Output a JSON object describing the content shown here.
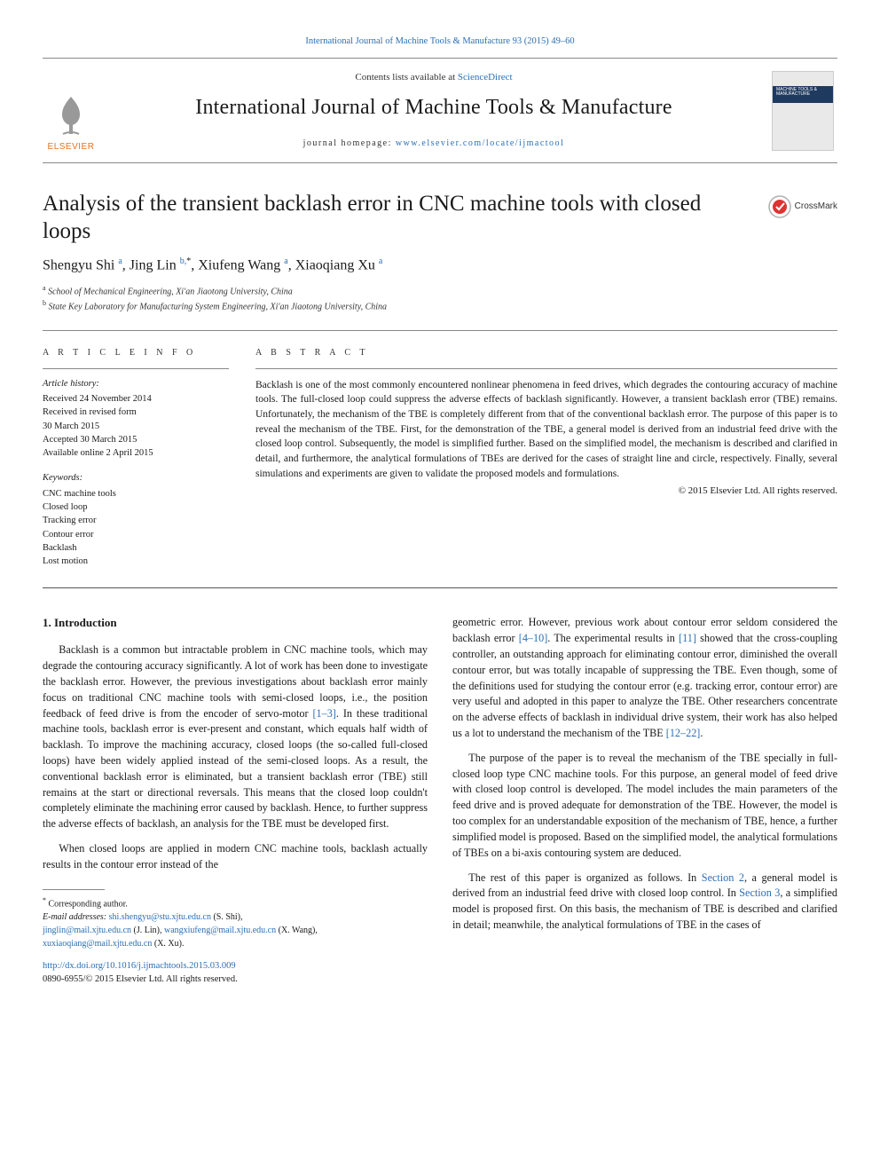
{
  "top_link": {
    "prefix": "",
    "text": "International Journal of Machine Tools & Manufacture 93 (2015) 49–60",
    "is_link": true
  },
  "header": {
    "contents_prefix": "Contents lists available at ",
    "contents_link": "ScienceDirect",
    "journal_name": "International Journal of Machine Tools & Manufacture",
    "homepage_prefix": "journal homepage: ",
    "homepage_link": "www.elsevier.com/locate/ijmactool",
    "elsevier_word": "ELSEVIER",
    "cover_title": "MACHINE TOOLS & MANUFACTURE"
  },
  "crossmark_label": "CrossMark",
  "article": {
    "title": "Analysis of the transient backlash error in CNC machine tools with closed loops",
    "authors_html": "Shengyu Shi <sup>a</sup>, Jing Lin <sup>b,</sup><sup class='ast'>*</sup>, Xiufeng Wang <sup>a</sup>, Xiaoqiang Xu <sup>a</sup>",
    "affiliations": [
      {
        "sup": "a",
        "text": "School of Mechanical Engineering, Xi'an Jiaotong University, China"
      },
      {
        "sup": "b",
        "text": "State Key Laboratory for Manufacturing System Engineering, Xi'an Jiaotong University, China"
      }
    ]
  },
  "info": {
    "heading": "A R T I C L E  I N F O",
    "history_title": "Article history:",
    "history": [
      "Received 24 November 2014",
      "Received in revised form",
      "30 March 2015",
      "Accepted 30 March 2015",
      "Available online 2 April 2015"
    ],
    "kw_title": "Keywords:",
    "keywords": [
      "CNC machine tools",
      "Closed loop",
      "Tracking error",
      "Contour error",
      "Backlash",
      "Lost motion"
    ]
  },
  "abstract": {
    "heading": "A B S T R A C T",
    "text": "Backlash is one of the most commonly encountered nonlinear phenomena in feed drives, which degrades the contouring accuracy of machine tools. The full-closed loop could suppress the adverse effects of backlash significantly. However, a transient backlash error (TBE) remains. Unfortunately, the mechanism of the TBE is completely different from that of the conventional backlash error. The purpose of this paper is to reveal the mechanism of the TBE. First, for the demonstration of the TBE, a general model is derived from an industrial feed drive with the closed loop control. Subsequently, the model is simplified further. Based on the simplified model, the mechanism is described and clarified in detail, and furthermore, the analytical formulations of TBEs are derived for the cases of straight line and circle, respectively. Finally, several simulations and experiments are given to validate the proposed models and formulations.",
    "copyright": "© 2015 Elsevier Ltd. All rights reserved."
  },
  "body": {
    "section_heading": "1.  Introduction",
    "col1": [
      "Backlash is a common but intractable problem in CNC machine tools, which may degrade the contouring accuracy significantly. A lot of work has been done to investigate the backlash error. However, the previous investigations about backlash error mainly focus on traditional CNC machine tools with semi-closed loops, i.e., the position feedback of feed drive is from the encoder of servo-motor <span class='ref'>[1–3]</span>. In these traditional machine tools, backlash error is ever-present and constant, which equals half width of backlash. To improve the machining accuracy, closed loops (the so-called full-closed loops) have been widely applied instead of the semi-closed loops. As a result, the conventional backlash error is eliminated, but a transient backlash error (TBE) still remains at the start or directional reversals. This means that the closed loop couldn't completely eliminate the machining error caused by backlash. Hence, to further suppress the adverse effects of backlash, an analysis for the TBE must be developed first.",
      "When closed loops are applied in modern CNC machine tools, backlash actually results in the contour error instead of the"
    ],
    "col2": [
      "geometric error. However, previous work about contour error seldom considered the backlash error <span class='ref'>[4–10]</span>. The experimental results in <span class='ref'>[11]</span> showed that the cross-coupling controller, an outstanding approach for eliminating contour error, diminished the overall contour error, but was totally incapable of suppressing the TBE. Even though, some of the definitions used for studying the contour error (e.g. tracking error, contour error) are very useful and adopted in this paper to analyze the TBE. Other researchers concentrate on the adverse effects of backlash in individual drive system, their work has also helped us a lot to understand the mechanism of the TBE <span class='ref'>[12–22]</span>.",
      "The purpose of the paper is to reveal the mechanism of the TBE specially in full-closed loop type CNC machine tools. For this purpose, an general model of feed drive with closed loop control is developed. The model includes the main parameters of the feed drive and is proved adequate for demonstration of the TBE. However, the model is too complex for an understandable exposition of the mechanism of TBE, hence, a further simplified model is proposed. Based on the simplified model, the analytical formulations of TBEs on a bi-axis contouring system are deduced.",
      "The rest of this paper is organized as follows. In <span class='ref'>Section 2</span>, a general model is derived from an industrial feed drive with closed loop control. In <span class='ref'>Section 3</span>, a simplified model is proposed first. On this basis, the mechanism of TBE is described and clarified in detail; meanwhile, the analytical formulations of TBE in the cases of"
    ]
  },
  "footnotes": {
    "corr": "Corresponding author.",
    "email_label": "E-mail addresses:",
    "emails": [
      {
        "addr": "shi.shengyu@stu.xjtu.edu.cn",
        "who": "(S. Shi),"
      },
      {
        "addr": "jinglin@mail.xjtu.edu.cn",
        "who": "(J. Lin),"
      },
      {
        "addr": "wangxiufeng@mail.xjtu.edu.cn",
        "who": "(X. Wang),"
      },
      {
        "addr": "xuxiaoqiang@mail.xjtu.edu.cn",
        "who": "(X. Xu)."
      }
    ],
    "doi": "http://dx.doi.org/10.1016/j.ijmachtools.2015.03.009",
    "issn": "0890-6955/© 2015 Elsevier Ltd. All rights reserved."
  },
  "colors": {
    "link": "#2a6fb5",
    "elsevier_orange": "#e8711c",
    "rule": "#888"
  }
}
